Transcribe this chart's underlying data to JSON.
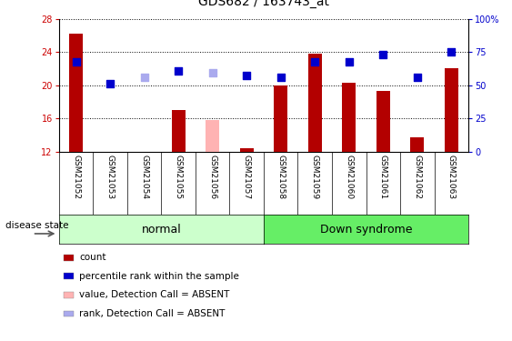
{
  "title": "GDS682 / 163743_at",
  "samples": [
    "GSM21052",
    "GSM21053",
    "GSM21054",
    "GSM21055",
    "GSM21056",
    "GSM21057",
    "GSM21058",
    "GSM21059",
    "GSM21060",
    "GSM21061",
    "GSM21062",
    "GSM21063"
  ],
  "bar_values": [
    26.2,
    11.8,
    11.9,
    17.0,
    null,
    12.4,
    20.0,
    23.8,
    20.3,
    19.3,
    13.7,
    22.0
  ],
  "bar_absent_values": [
    null,
    null,
    null,
    null,
    15.8,
    null,
    null,
    null,
    null,
    null,
    null,
    null
  ],
  "dot_values": [
    22.8,
    20.2,
    21.0,
    21.7,
    21.5,
    21.2,
    21.0,
    22.8,
    22.8,
    23.7,
    21.0,
    24.0
  ],
  "dot_absent": [
    false,
    false,
    true,
    false,
    true,
    false,
    false,
    false,
    false,
    false,
    false,
    false
  ],
  "ylim": [
    12,
    28
  ],
  "yticks_left": [
    12,
    16,
    20,
    24,
    28
  ],
  "yticks_right": [
    0,
    25,
    50,
    75,
    100
  ],
  "bar_color": "#b30000",
  "bar_absent_color": "#ffb3b3",
  "dot_color": "#0000cc",
  "dot_absent_color": "#aaaaee",
  "grid_color": "#000000",
  "normal_color": "#ccffcc",
  "down_syndrome_color": "#66ee66",
  "group_label_normal": "normal",
  "group_label_down": "Down syndrome",
  "disease_state_label": "disease state",
  "legend_items": [
    {
      "label": "count",
      "color": "#b30000"
    },
    {
      "label": "percentile rank within the sample",
      "color": "#0000cc"
    },
    {
      "label": "value, Detection Call = ABSENT",
      "color": "#ffb3b3"
    },
    {
      "label": "rank, Detection Call = ABSENT",
      "color": "#aaaaee"
    }
  ],
  "bar_width": 0.4,
  "dot_size": 40,
  "background_color": "#ffffff",
  "tick_label_area_color": "#cccccc",
  "right_axis_label_color": "#0000cc",
  "left_axis_label_color": "#cc0000",
  "fig_width": 5.63,
  "fig_height": 3.75,
  "dpi": 100
}
